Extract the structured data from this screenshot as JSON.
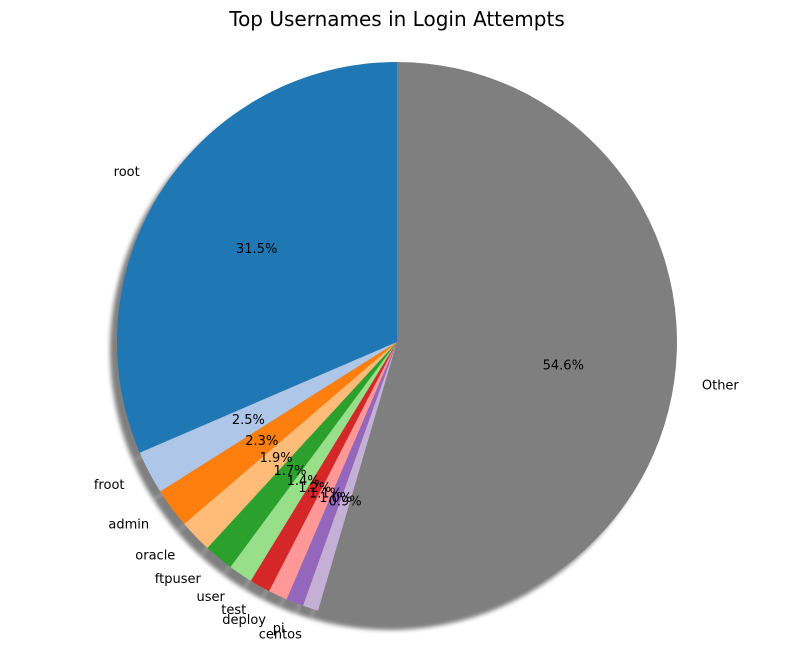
{
  "chart_data": {
    "type": "pie",
    "title": "Top Usernames in Login Attempts",
    "start_angle_deg": 90,
    "direction": "counterclockwise",
    "shadow": true,
    "legend": "none",
    "slices": [
      {
        "label": "root",
        "value": 31.5,
        "pct_text": "31.5%",
        "color": "#1f77b4"
      },
      {
        "label": "froot",
        "value": 2.5,
        "pct_text": "2.5%",
        "color": "#aec7e8"
      },
      {
        "label": "admin",
        "value": 2.3,
        "pct_text": "2.3%",
        "color": "#ff7f0e"
      },
      {
        "label": "oracle",
        "value": 1.9,
        "pct_text": "1.9%",
        "color": "#ffbb78"
      },
      {
        "label": "ftpuser",
        "value": 1.7,
        "pct_text": "1.7%",
        "color": "#2ca02c"
      },
      {
        "label": "user",
        "value": 1.4,
        "pct_text": "1.4%",
        "color": "#98df8a"
      },
      {
        "label": "test",
        "value": 1.2,
        "pct_text": "1.2%",
        "color": "#d62728"
      },
      {
        "label": "deploy",
        "value": 1.1,
        "pct_text": "1.1%",
        "color": "#ff9896"
      },
      {
        "label": "pi",
        "value": 1.0,
        "pct_text": "1.0%",
        "color": "#9467bd"
      },
      {
        "label": "centos",
        "value": 0.9,
        "pct_text": "0.9%",
        "color": "#c5b0d5"
      },
      {
        "label": "Other",
        "value": 54.6,
        "pct_text": "54.6%",
        "color": "#7f7f7f"
      }
    ]
  }
}
